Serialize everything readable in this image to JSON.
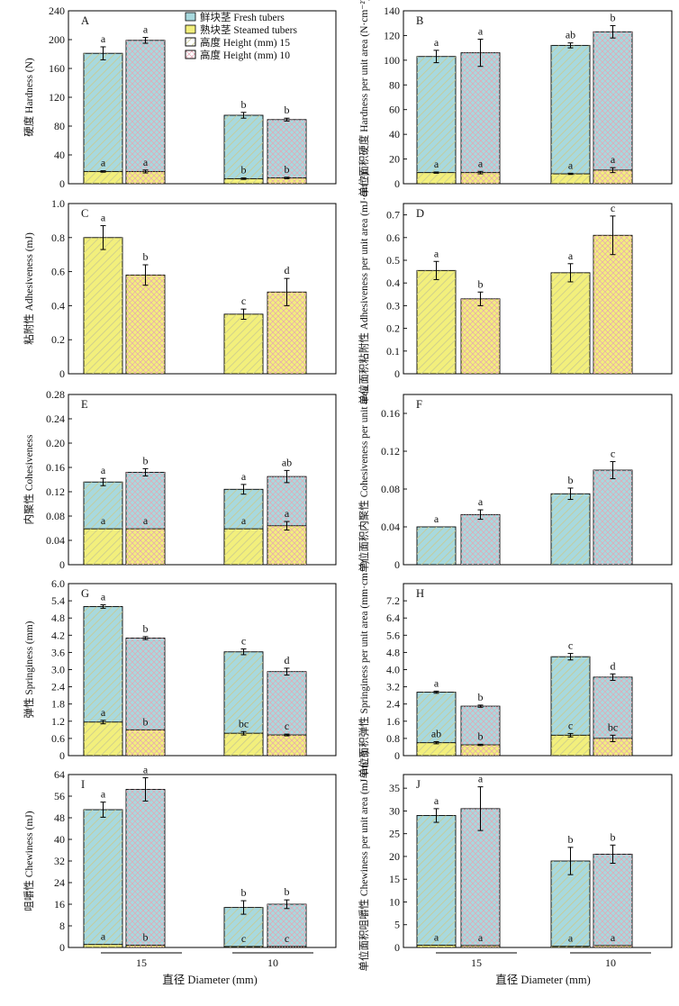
{
  "colors": {
    "fresh": "#a8d9de",
    "steamed": "#f2ef7c",
    "hatch15": "#c9c98f",
    "hatch10": "#e7a3b3",
    "axis": "#000000"
  },
  "legend": {
    "fresh": "鲜块茎 Fresh tubers",
    "steamed": "熟块茎 Steamed tubers",
    "h15": "高度 Height (mm) 15",
    "h10": "高度 Height (mm) 10"
  },
  "xaxis": {
    "label": "直径 Diameter (mm)",
    "groups": [
      "15",
      "10"
    ]
  },
  "chart_data": [
    {
      "id": "A",
      "type": "bar",
      "ylabel": "硬度 Hardness (N)",
      "ylim": [
        0,
        240
      ],
      "yticks": [
        0,
        40,
        80,
        120,
        160,
        200,
        240
      ],
      "tick_labels": [
        "0",
        "40",
        "80",
        "120",
        "160",
        "200",
        "240"
      ],
      "categories": [
        "15 mm · h15",
        "15 mm · h10",
        "10 mm · h15",
        "10 mm · h10"
      ],
      "series": [
        {
          "name": "鲜块茎 Fresh tubers",
          "values": [
            181,
            199,
            95,
            89
          ],
          "errors": [
            9,
            4,
            4,
            2
          ],
          "letters": [
            "a",
            "a",
            "b",
            "b"
          ]
        },
        {
          "name": "熟块茎 Steamed tubers",
          "values": [
            17,
            17,
            7,
            8
          ],
          "errors": [
            1,
            2,
            1,
            1
          ],
          "letters": [
            "a",
            "a",
            "b",
            "b"
          ]
        }
      ]
    },
    {
      "id": "B",
      "type": "bar",
      "ylabel": "单位面积硬度 Hardness per unit area (N·cm⁻²)",
      "ylim": [
        0,
        140
      ],
      "yticks": [
        0,
        20,
        40,
        60,
        80,
        100,
        120,
        140
      ],
      "tick_labels": [
        "0",
        "20",
        "40",
        "60",
        "80",
        "100",
        "120",
        "140"
      ],
      "categories": [
        "15 mm · h15",
        "15 mm · h10",
        "10 mm · h15",
        "10 mm · h10"
      ],
      "series": [
        {
          "name": "鲜块茎 Fresh tubers",
          "values": [
            103,
            106,
            112,
            123
          ],
          "errors": [
            5,
            11,
            2,
            5
          ],
          "letters": [
            "a",
            "a",
            "ab",
            "b"
          ]
        },
        {
          "name": "熟块茎 Steamed tubers",
          "values": [
            9,
            9,
            8,
            11
          ],
          "errors": [
            0.5,
            1,
            0.5,
            2
          ],
          "letters": [
            "a",
            "a",
            "a",
            "a"
          ]
        }
      ]
    },
    {
      "id": "C",
      "type": "bar",
      "ylabel": "粘附性 Adhesiveness (mJ)",
      "ylim": [
        0,
        1.0
      ],
      "yticks": [
        0,
        0.2,
        0.4,
        0.6,
        0.8,
        1.0
      ],
      "tick_labels": [
        "0",
        "0.2",
        "0.4",
        "0.6",
        "0.8",
        "1.0"
      ],
      "categories": [
        "15 mm · h15",
        "15 mm · h10",
        "10 mm · h15",
        "10 mm · h10"
      ],
      "series": [
        {
          "name": "熟块茎 Steamed tubers",
          "values": [
            0.8,
            0.58,
            0.35,
            0.48
          ],
          "errors": [
            0.07,
            0.06,
            0.03,
            0.08
          ],
          "letters": [
            "a",
            "b",
            "c",
            "d"
          ]
        }
      ]
    },
    {
      "id": "D",
      "type": "bar",
      "ylabel": "单位面积粘附性 Adhesiveness per unit area (mJ·cm⁻²)",
      "ylim": [
        0,
        0.75
      ],
      "yticks": [
        0,
        0.1,
        0.2,
        0.3,
        0.4,
        0.5,
        0.6,
        0.7
      ],
      "tick_labels": [
        "0",
        "0.1",
        "0.2",
        "0.3",
        "0.4",
        "0.5",
        "0.6",
        "0.7"
      ],
      "categories": [
        "15 mm · h15",
        "15 mm · h10",
        "10 mm · h15",
        "10 mm · h10"
      ],
      "series": [
        {
          "name": "熟块茎 Steamed tubers",
          "values": [
            0.455,
            0.33,
            0.445,
            0.61
          ],
          "errors": [
            0.04,
            0.03,
            0.04,
            0.085
          ],
          "letters": [
            "a",
            "b",
            "a",
            "c"
          ]
        }
      ]
    },
    {
      "id": "E",
      "type": "bar",
      "ylabel": "内聚性 Cohesiveness",
      "ylim": [
        0,
        0.28
      ],
      "yticks": [
        0,
        0.04,
        0.08,
        0.12,
        0.16,
        0.2,
        0.24,
        0.28
      ],
      "tick_labels": [
        "0",
        "0.04",
        "0.08",
        "0.12",
        "0.16",
        "0.20",
        "0.24",
        "0.28"
      ],
      "categories": [
        "15 mm · h15",
        "15 mm · h10",
        "10 mm · h15",
        "10 mm · h10"
      ],
      "series": [
        {
          "name": "鲜块茎 Fresh tubers",
          "values": [
            0.136,
            0.152,
            0.124,
            0.145
          ],
          "errors": [
            0.006,
            0.006,
            0.008,
            0.01
          ],
          "letters": [
            "a",
            "b",
            "a",
            "ab"
          ]
        },
        {
          "name": "熟块茎 Steamed tubers",
          "values": [
            0.059,
            0.059,
            0.059,
            0.064
          ],
          "errors": [
            0,
            0,
            0,
            0.007
          ],
          "letters": [
            "a",
            "a",
            "a",
            "a"
          ]
        }
      ]
    },
    {
      "id": "F",
      "type": "bar",
      "ylabel": "单位面积内聚性 Cohesiveness per unit area",
      "ylim": [
        0,
        0.18
      ],
      "yticks": [
        0,
        0.04,
        0.08,
        0.12,
        0.16
      ],
      "tick_labels": [
        "0",
        "0.04",
        "0.08",
        "0.12",
        "0.16"
      ],
      "categories": [
        "15 mm · h15",
        "15 mm · h10",
        "10 mm · h15",
        "10 mm · h10"
      ],
      "series": [
        {
          "name": "鲜块茎 Fresh tubers",
          "values": [
            0.04,
            0.053,
            0.075,
            0.1
          ],
          "errors": [
            0,
            0.005,
            0.006,
            0.009
          ],
          "letters": [
            "a",
            "a",
            "b",
            "c"
          ]
        }
      ]
    },
    {
      "id": "G",
      "type": "bar",
      "ylabel": "弹性 Springiness (mm)",
      "ylim": [
        0,
        6.0
      ],
      "yticks": [
        0,
        0.6,
        1.2,
        1.8,
        2.4,
        3.0,
        3.6,
        4.2,
        4.8,
        5.4,
        6.0
      ],
      "tick_labels": [
        "0",
        "0.6",
        "1.2",
        "1.8",
        "2.4",
        "3.0",
        "3.6",
        "4.2",
        "4.8",
        "5.4",
        "6.0"
      ],
      "categories": [
        "15 mm · h15",
        "15 mm · h10",
        "10 mm · h15",
        "10 mm · h10"
      ],
      "series": [
        {
          "name": "鲜块茎 Fresh tubers",
          "values": [
            5.2,
            4.1,
            3.62,
            2.93
          ],
          "errors": [
            0.06,
            0.05,
            0.1,
            0.12
          ],
          "letters": [
            "a",
            "b",
            "c",
            "d"
          ]
        },
        {
          "name": "熟块茎 Steamed tubers",
          "values": [
            1.17,
            0.9,
            0.78,
            0.72
          ],
          "errors": [
            0.06,
            0,
            0.06,
            0.03
          ],
          "letters": [
            "a",
            "b",
            "bc",
            "c"
          ]
        }
      ]
    },
    {
      "id": "H",
      "type": "bar",
      "ylabel": "单位面积弹性 Springiness per unit area (mm·cm⁻²)",
      "ylim": [
        0,
        8.0
      ],
      "yticks": [
        0,
        0.8,
        1.6,
        2.4,
        3.2,
        4.0,
        4.8,
        5.6,
        6.4,
        7.2
      ],
      "tick_labels": [
        "0",
        "0.8",
        "1.6",
        "2.4",
        "3.2",
        "4.0",
        "4.8",
        "5.6",
        "6.4",
        "7.2"
      ],
      "categories": [
        "15 mm · h15",
        "15 mm · h10",
        "10 mm · h15",
        "10 mm · h10"
      ],
      "series": [
        {
          "name": "鲜块茎 Fresh tubers",
          "values": [
            2.95,
            2.3,
            4.6,
            3.65
          ],
          "errors": [
            0.05,
            0.05,
            0.15,
            0.15
          ],
          "letters": [
            "a",
            "b",
            "c",
            "d"
          ]
        },
        {
          "name": "熟块茎 Steamed tubers",
          "values": [
            0.6,
            0.5,
            0.95,
            0.8
          ],
          "errors": [
            0.05,
            0.03,
            0.08,
            0.15
          ],
          "letters": [
            "ab",
            "b",
            "c",
            "bc"
          ]
        }
      ]
    },
    {
      "id": "I",
      "type": "bar",
      "ylabel": "咀嚼性 Chewiness (mJ)",
      "ylim": [
        0,
        64
      ],
      "yticks": [
        0,
        8,
        16,
        24,
        32,
        40,
        48,
        56,
        64
      ],
      "tick_labels": [
        "0",
        "8",
        "16",
        "24",
        "32",
        "40",
        "48",
        "56",
        "64"
      ],
      "categories": [
        "15 mm · h15",
        "15 mm · h10",
        "10 mm · h15",
        "10 mm · h10"
      ],
      "series": [
        {
          "name": "鲜块茎 Fresh tubers",
          "values": [
            51,
            58.5,
            14.8,
            16
          ],
          "errors": [
            2.8,
            4.3,
            2.5,
            1.6
          ],
          "letters": [
            "a",
            "a",
            "b",
            "b"
          ]
        },
        {
          "name": "熟块茎 Steamed tubers",
          "values": [
            1.1,
            0.8,
            0.35,
            0.35
          ],
          "errors": [
            0,
            0,
            0,
            0
          ],
          "letters": [
            "a",
            "b",
            "c",
            "c"
          ]
        }
      ]
    },
    {
      "id": "J",
      "type": "bar",
      "ylabel": "单位面积咀嚼性 Chewiness per unit area (mJ·cm⁻²)",
      "ylim": [
        0,
        38
      ],
      "yticks": [
        0,
        5,
        10,
        15,
        20,
        25,
        30,
        35
      ],
      "tick_labels": [
        "0",
        "5",
        "10",
        "15",
        "20",
        "25",
        "30",
        "35"
      ],
      "categories": [
        "15 mm · h15",
        "15 mm · h10",
        "10 mm · h15",
        "10 mm · h10"
      ],
      "series": [
        {
          "name": "鲜块茎 Fresh tubers",
          "values": [
            29,
            30.5,
            19,
            20.5
          ],
          "errors": [
            1.5,
            4.8,
            3,
            2
          ],
          "letters": [
            "a",
            "a",
            "b",
            "b"
          ]
        },
        {
          "name": "熟块茎 Steamed tubers",
          "values": [
            0.5,
            0.4,
            0.25,
            0.4
          ],
          "errors": [
            0,
            0,
            0,
            0
          ],
          "letters": [
            "a",
            "a",
            "a",
            "a"
          ]
        }
      ]
    }
  ]
}
